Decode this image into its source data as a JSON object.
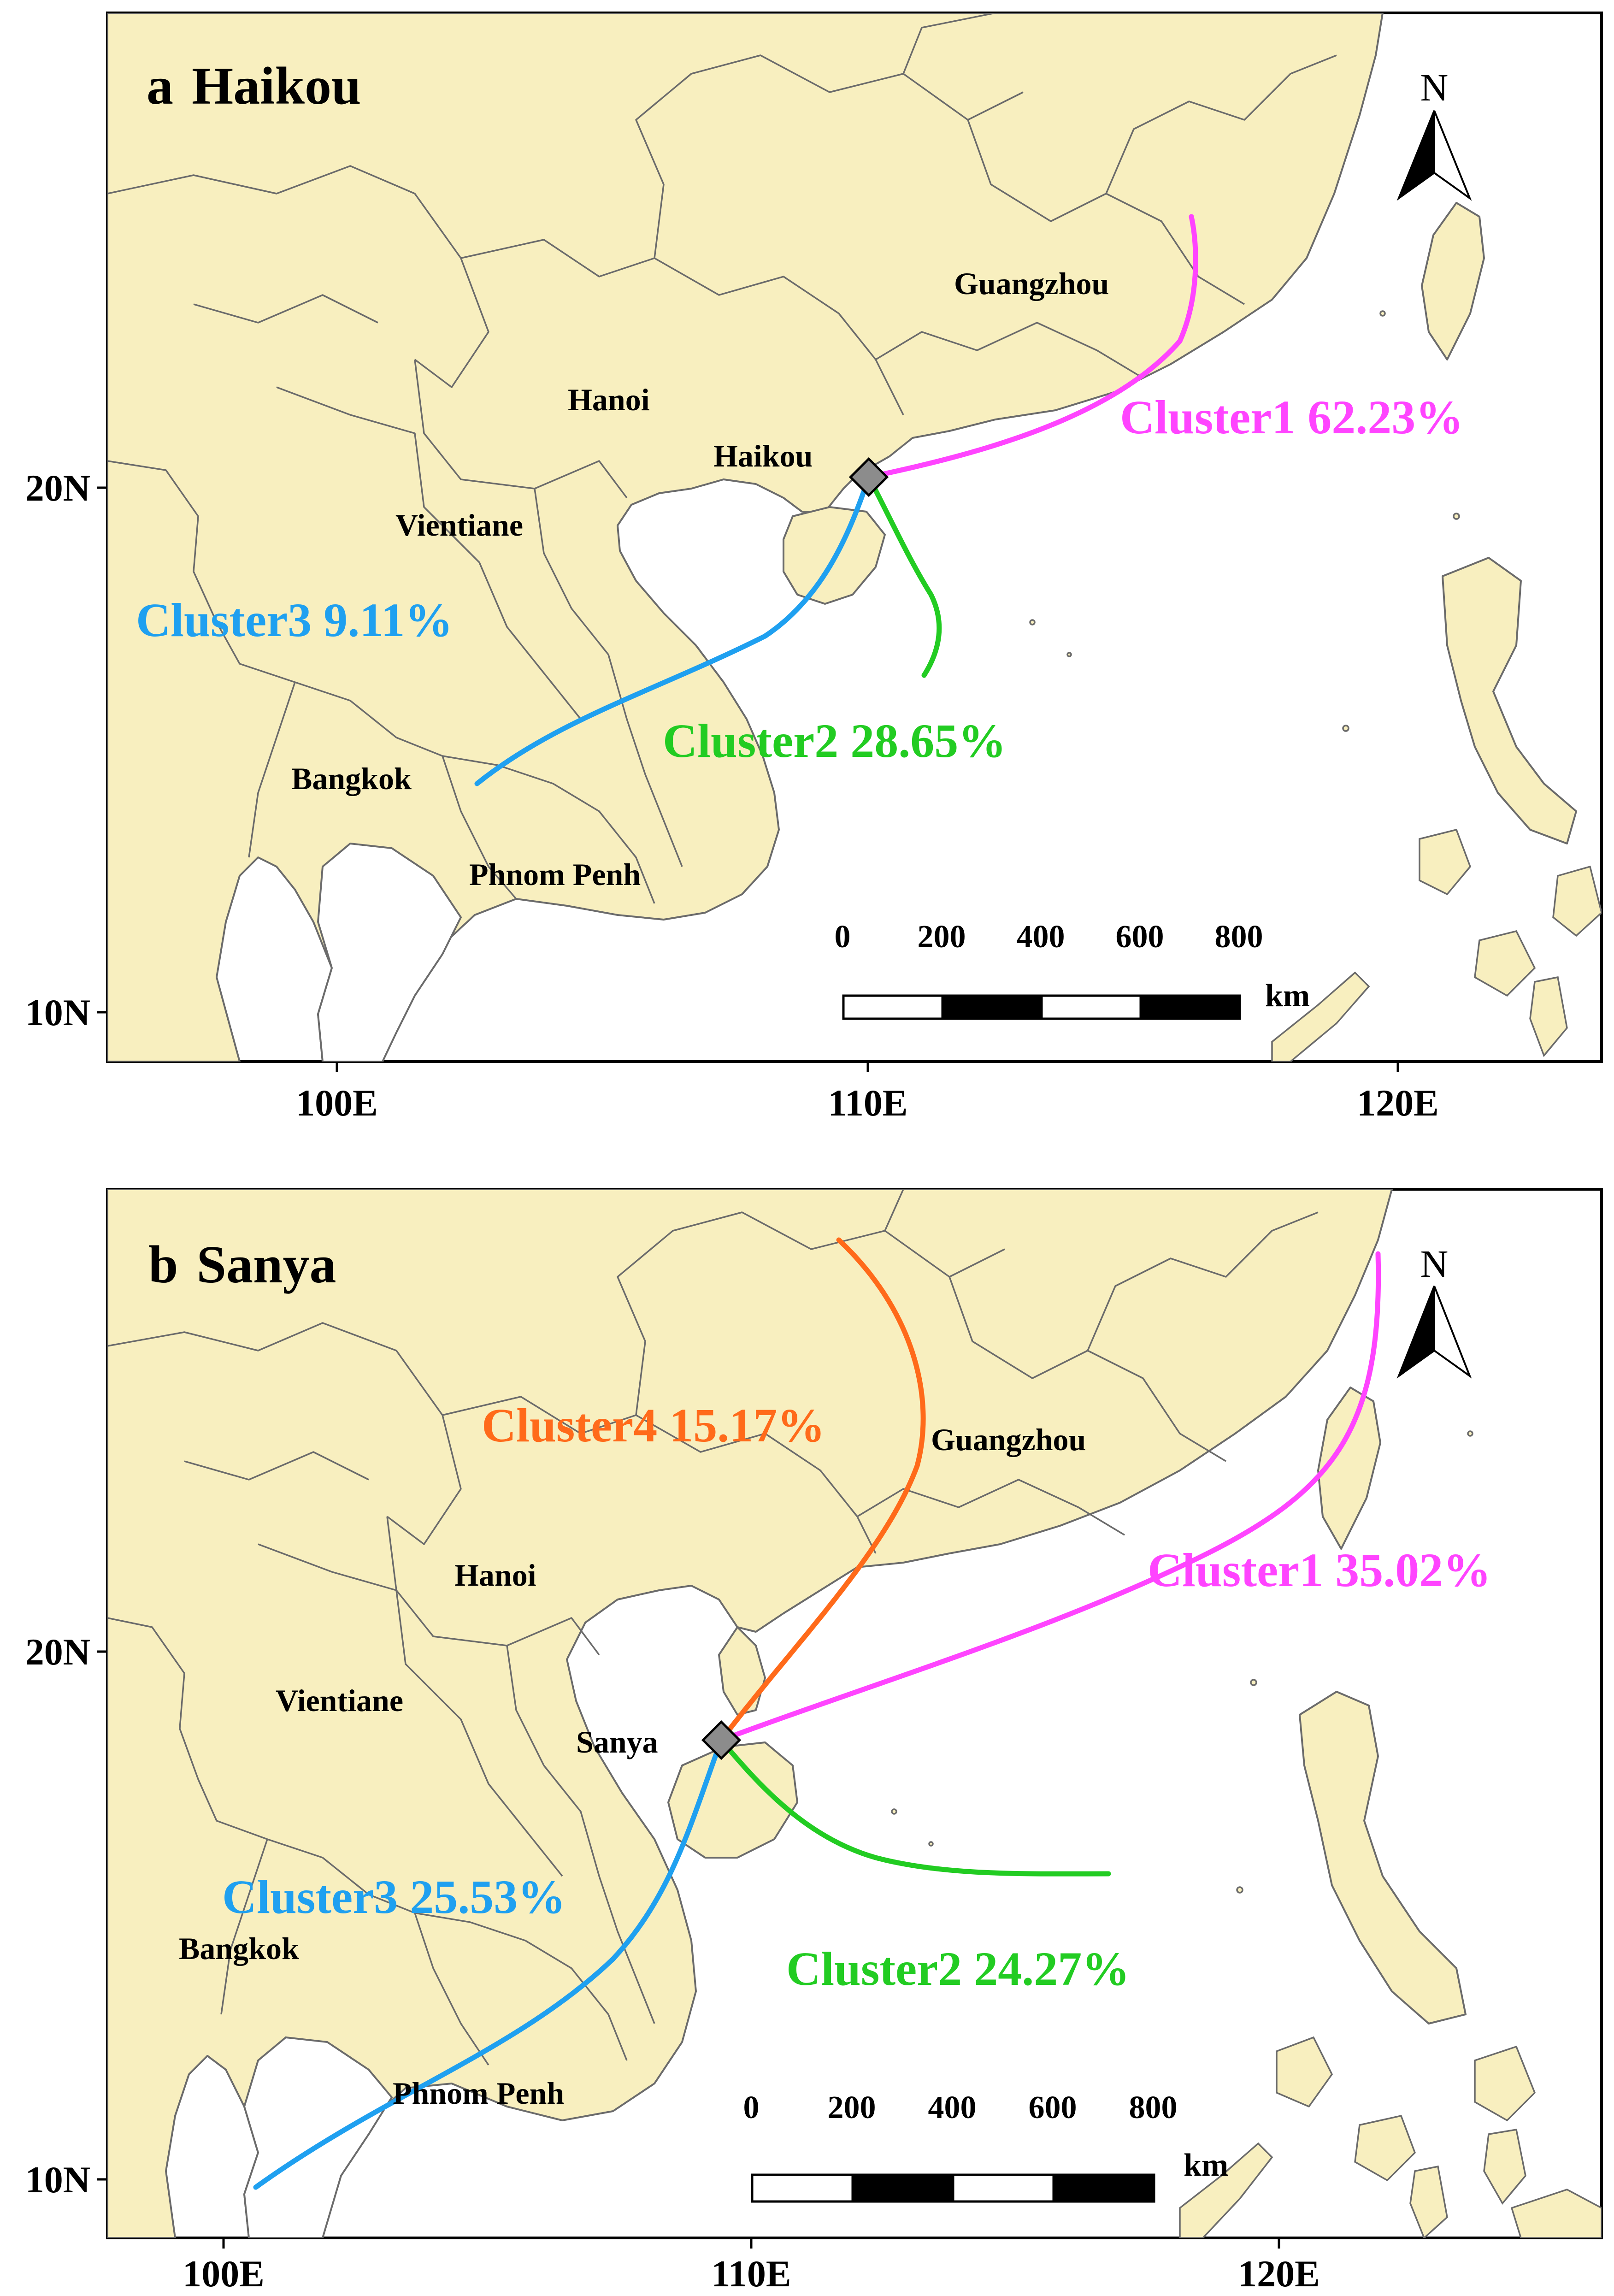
{
  "map": {
    "kind": "back-trajectory cluster map",
    "colors": {
      "land": "#f8efbf",
      "sea": "#ffffff",
      "border": "#6b6b6b",
      "cluster1": "#ff44ff",
      "cluster2": "#22cc22",
      "cluster3": "#1fa0f0",
      "cluster4": "#ff6a1a",
      "station_marker": "#8c8c8c"
    },
    "north_arrow_label": "N"
  },
  "panels": [
    {
      "id": "a",
      "letter": "a",
      "station": "Haikou",
      "station_label": "Haikou",
      "city_labels": {
        "guangzhou": "Guangzhou",
        "hanoi": "Hanoi",
        "vientiane": "Vientiane",
        "bangkok": "Bangkok",
        "phnom_penh": "Phnom Penh"
      },
      "lat_labels": [
        "20N",
        "10N"
      ],
      "lon_labels": [
        "100E",
        "110E",
        "120E"
      ],
      "scale": {
        "ticks": [
          "0",
          "200",
          "400",
          "600",
          "800"
        ],
        "unit": "km"
      },
      "clusters": [
        {
          "name": "Cluster1",
          "percent": "62.23%",
          "label": "Cluster1 62.23%",
          "color": "#ff44ff"
        },
        {
          "name": "Cluster2",
          "percent": "28.65%",
          "label": "Cluster2 28.65%",
          "color": "#22cc22"
        },
        {
          "name": "Cluster3",
          "percent": "9.11%",
          "label": "Cluster3 9.11%",
          "color": "#1fa0f0"
        }
      ]
    },
    {
      "id": "b",
      "letter": "b",
      "station": "Sanya",
      "station_label": "Sanya",
      "city_labels": {
        "guangzhou": "Guangzhou",
        "hanoi": "Hanoi",
        "vientiane": "Vientiane",
        "bangkok": "Bangkok",
        "phnom_penh": "Phnom Penh"
      },
      "lat_labels": [
        "20N",
        "10N"
      ],
      "lon_labels": [
        "100E",
        "110E",
        "120E"
      ],
      "scale": {
        "ticks": [
          "0",
          "200",
          "400",
          "600",
          "800"
        ],
        "unit": "km"
      },
      "clusters": [
        {
          "name": "Cluster1",
          "percent": "35.02%",
          "label": "Cluster1 35.02%",
          "color": "#ff44ff"
        },
        {
          "name": "Cluster2",
          "percent": "24.27%",
          "label": "Cluster2 24.27%",
          "color": "#22cc22"
        },
        {
          "name": "Cluster3",
          "percent": "25.53%",
          "label": "Cluster3 25.53%",
          "color": "#1fa0f0"
        },
        {
          "name": "Cluster4",
          "percent": "15.17%",
          "label": "Cluster4 15.17%",
          "color": "#ff6a1a"
        }
      ]
    }
  ]
}
